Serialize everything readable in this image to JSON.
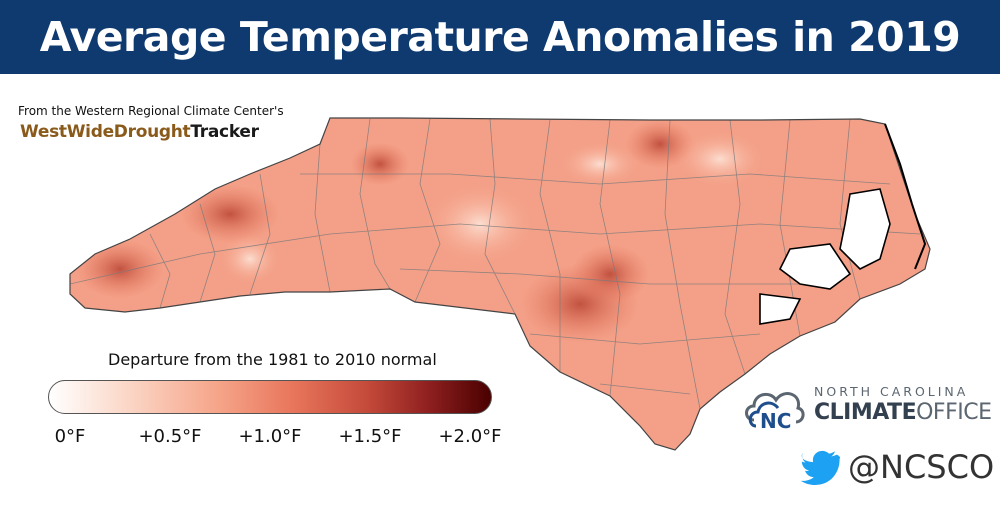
{
  "header": {
    "title": "Average Temperature Anomalies in 2019"
  },
  "credit": {
    "line": "From the Western Regional Climate Center's",
    "logo_part1": "WestWideDrought",
    "logo_part2": "Tracker"
  },
  "legend": {
    "title": "Departure from the 1981 to 2010 normal",
    "ticks": [
      {
        "label": "0°F",
        "value": 0.0
      },
      {
        "label": "+0.5°F",
        "value": 0.5
      },
      {
        "label": "+1.0°F",
        "value": 1.0
      },
      {
        "label": "+1.5°F",
        "value": 1.5
      },
      {
        "label": "+2.0°F",
        "value": 2.0
      }
    ],
    "range": [
      0.0,
      2.0
    ],
    "colors": [
      "#ffffff",
      "#fbd6c6",
      "#f6a58a",
      "#e8765c",
      "#c44a3a",
      "#8e1f1f",
      "#4a0000"
    ]
  },
  "map": {
    "region": "North Carolina",
    "fill_base": "#f4a088",
    "border_color": "#6b6b6b",
    "coast_color": "#000000"
  },
  "logo": {
    "top_line": "NORTH CAROLINA",
    "bold_word": "CLIMATE",
    "light_word": "OFFICE"
  },
  "social": {
    "icon": "twitter-bird-icon",
    "handle": "@NCSCO",
    "icon_color": "#1da1f2"
  }
}
